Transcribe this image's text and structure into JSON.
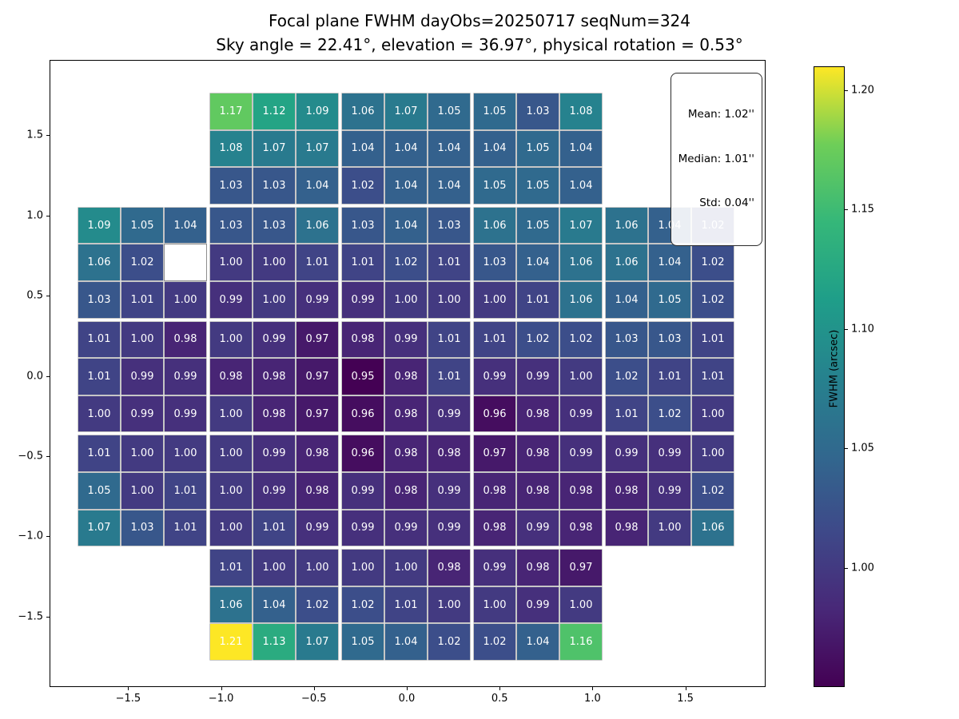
{
  "figure": {
    "title": "Focal plane FWHM dayObs=20250717 seqNum=324",
    "subtitle": "Sky angle = 22.41°, elevation = 36.97°, physical rotation = 0.53°"
  },
  "stats_box": {
    "lines": [
      "Mean: 1.02''",
      "Median: 1.01''",
      "Std: 0.04''"
    ]
  },
  "chart_data": {
    "type": "heatmap",
    "title": "Focal plane FWHM dayObs=20250717 seqNum=324",
    "subtitle": "Sky angle = 22.41°, elevation = 36.97°, physical rotation = 0.53°",
    "colormap": "viridis",
    "vmin": 0.95,
    "vmax": 1.21,
    "colorbar_label": "FWHM (arcsec)",
    "colorbar_ticks": [
      1.0,
      1.05,
      1.1,
      1.15,
      1.2
    ],
    "x_ticks": [
      -1.5,
      -1.0,
      -0.5,
      0.0,
      0.5,
      1.0,
      1.5
    ],
    "y_ticks": [
      1.5,
      1.0,
      0.5,
      0.0,
      -0.5,
      -1.0,
      -1.5
    ],
    "x_range": [
      -1.92,
      1.93
    ],
    "y_range": [
      -1.94,
      1.97
    ],
    "grid_on": false,
    "stats": {
      "mean_arcsec": 1.02,
      "median_arcsec": 1.01,
      "std_arcsec": 0.04
    },
    "missing_cell_note": "row 5 col 3 (1-indexed, top-left origin) drawn as blank white cell",
    "rows_top_to_bottom": [
      [
        null,
        null,
        null,
        1.17,
        1.12,
        1.09,
        1.06,
        1.07,
        1.05,
        1.05,
        1.03,
        1.08,
        null,
        null,
        null
      ],
      [
        null,
        null,
        null,
        1.08,
        1.07,
        1.07,
        1.04,
        1.04,
        1.04,
        1.04,
        1.05,
        1.04,
        null,
        null,
        null
      ],
      [
        null,
        null,
        null,
        1.03,
        1.03,
        1.04,
        1.02,
        1.04,
        1.04,
        1.05,
        1.05,
        1.04,
        null,
        null,
        null
      ],
      [
        1.09,
        1.05,
        1.04,
        1.03,
        1.03,
        1.06,
        1.03,
        1.04,
        1.03,
        1.06,
        1.05,
        1.07,
        1.06,
        1.04,
        1.02
      ],
      [
        1.06,
        1.02,
        "nan",
        1.0,
        1.0,
        1.01,
        1.01,
        1.02,
        1.01,
        1.03,
        1.04,
        1.06,
        1.06,
        1.04,
        1.02
      ],
      [
        1.03,
        1.01,
        1.0,
        0.99,
        1.0,
        0.99,
        0.99,
        1.0,
        1.0,
        1.0,
        1.01,
        1.06,
        1.04,
        1.05,
        1.02
      ],
      [
        1.01,
        1.0,
        0.98,
        1.0,
        0.99,
        0.97,
        0.98,
        0.99,
        1.01,
        1.01,
        1.02,
        1.02,
        1.03,
        1.03,
        1.01
      ],
      [
        1.01,
        0.99,
        0.99,
        0.98,
        0.98,
        0.97,
        0.95,
        0.98,
        1.01,
        0.99,
        0.99,
        1.0,
        1.02,
        1.01,
        1.01
      ],
      [
        1.0,
        0.99,
        0.99,
        1.0,
        0.98,
        0.97,
        0.96,
        0.98,
        0.99,
        0.96,
        0.98,
        0.99,
        1.01,
        1.02,
        1.0
      ],
      [
        1.01,
        1.0,
        1.0,
        1.0,
        0.99,
        0.98,
        0.96,
        0.98,
        0.98,
        0.97,
        0.98,
        0.99,
        0.99,
        0.99,
        1.0
      ],
      [
        1.05,
        1.0,
        1.01,
        1.0,
        0.99,
        0.98,
        0.99,
        0.98,
        0.99,
        0.98,
        0.98,
        0.98,
        0.98,
        0.99,
        1.02
      ],
      [
        1.07,
        1.03,
        1.01,
        1.0,
        1.01,
        0.99,
        0.99,
        0.99,
        0.99,
        0.98,
        0.99,
        0.98,
        0.98,
        1.0,
        1.06
      ],
      [
        null,
        null,
        null,
        1.01,
        1.0,
        1.0,
        1.0,
        1.0,
        0.98,
        0.99,
        0.98,
        0.97,
        null,
        null,
        null
      ],
      [
        null,
        null,
        null,
        1.06,
        1.04,
        1.02,
        1.02,
        1.01,
        1.0,
        1.0,
        0.99,
        1.0,
        null,
        null,
        null
      ],
      [
        null,
        null,
        null,
        1.21,
        1.13,
        1.07,
        1.05,
        1.04,
        1.02,
        1.02,
        1.04,
        1.16,
        null,
        null,
        null
      ]
    ],
    "viridis_stops": [
      "#440154",
      "#482878",
      "#3e4989",
      "#31688e",
      "#26828e",
      "#1f9e89",
      "#35b779",
      "#6ece58",
      "#fde725"
    ]
  }
}
